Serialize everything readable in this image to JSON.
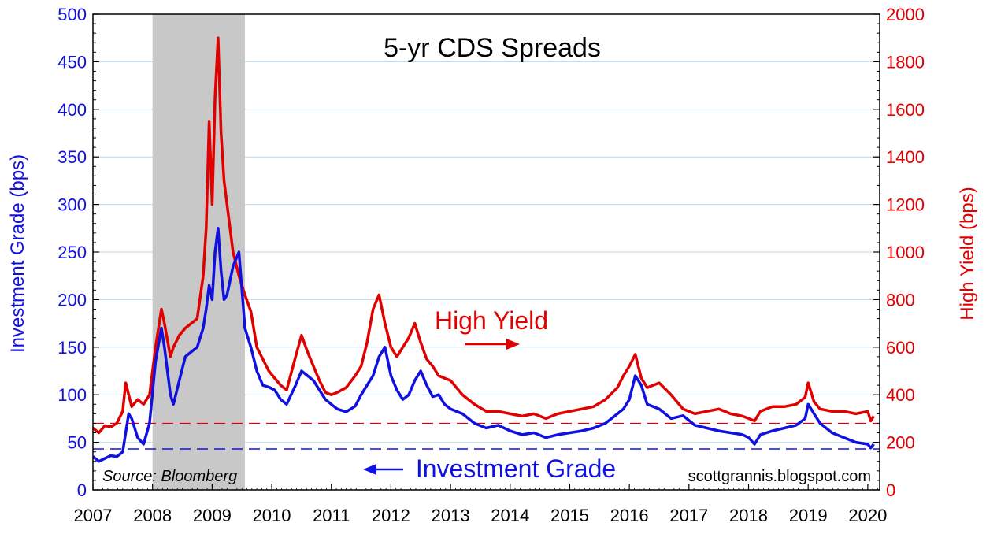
{
  "chart_data": {
    "type": "line",
    "title": "5-yr CDS Spreads",
    "source": "Source: Bloomberg",
    "watermark": "scottgrannis.blogspot.com",
    "ylabel_left": "Investment Grade (bps)",
    "ylabel_right": "High Yield (bps)",
    "ylim_left": [
      0,
      500
    ],
    "ylim_right": [
      0,
      2000
    ],
    "xlim": [
      2007,
      2020.2
    ],
    "yticks_left": [
      "0",
      "50",
      "100",
      "150",
      "200",
      "250",
      "300",
      "350",
      "400",
      "450",
      "500"
    ],
    "yticks_right": [
      "0",
      "200",
      "400",
      "600",
      "800",
      "1000",
      "1200",
      "1400",
      "1600",
      "1800",
      "2000"
    ],
    "xticks": [
      "2007",
      "2008",
      "2009",
      "2010",
      "2011",
      "2012",
      "2013",
      "2014",
      "2015",
      "2016",
      "2017",
      "2018",
      "2019",
      "2020"
    ],
    "grid": true,
    "shaded_region": [
      2008.0,
      2009.55
    ],
    "annotations": {
      "high_yield": "High Yield",
      "investment_grade": "Investment Grade"
    },
    "colors": {
      "investment_grade": "#1010e0",
      "high_yield": "#e00000",
      "shade": "#c8c8c8",
      "grid": "#b9d9ec"
    },
    "reference_lines": {
      "investment_grade": 43,
      "high_yield": 280
    },
    "series": [
      {
        "axis": "left",
        "color": "#1010e0",
        "x": [
          2007.0,
          2007.1,
          2007.2,
          2007.3,
          2007.4,
          2007.5,
          2007.55,
          2007.6,
          2007.65,
          2007.75,
          2007.85,
          2007.95,
          2008.05,
          2008.15,
          2008.2,
          2008.3,
          2008.35,
          2008.45,
          2008.55,
          2008.65,
          2008.75,
          2008.85,
          2008.9,
          2008.95,
          2009.0,
          2009.05,
          2009.1,
          2009.15,
          2009.2,
          2009.25,
          2009.35,
          2009.45,
          2009.55,
          2009.65,
          2009.75,
          2009.85,
          2009.95,
          2010.05,
          2010.15,
          2010.25,
          2010.4,
          2010.5,
          2010.6,
          2010.7,
          2010.8,
          2010.9,
          2011.0,
          2011.1,
          2011.25,
          2011.4,
          2011.5,
          2011.6,
          2011.7,
          2011.8,
          2011.9,
          2012.0,
          2012.1,
          2012.2,
          2012.3,
          2012.4,
          2012.5,
          2012.6,
          2012.7,
          2012.8,
          2012.9,
          2013.0,
          2013.2,
          2013.4,
          2013.6,
          2013.8,
          2014.0,
          2014.2,
          2014.4,
          2014.6,
          2014.8,
          2015.0,
          2015.2,
          2015.4,
          2015.6,
          2015.8,
          2015.9,
          2016.0,
          2016.1,
          2016.2,
          2016.3,
          2016.5,
          2016.7,
          2016.9,
          2017.1,
          2017.3,
          2017.5,
          2017.7,
          2017.9,
          2018.0,
          2018.1,
          2018.2,
          2018.4,
          2018.6,
          2018.8,
          2018.95,
          2019.0,
          2019.1,
          2019.2,
          2019.4,
          2019.6,
          2019.8,
          2020.0,
          2020.05,
          2020.1
        ],
        "values": [
          35,
          30,
          33,
          36,
          35,
          40,
          60,
          80,
          75,
          55,
          48,
          70,
          135,
          170,
          150,
          100,
          90,
          115,
          140,
          145,
          150,
          170,
          190,
          215,
          200,
          250,
          275,
          230,
          200,
          205,
          235,
          250,
          170,
          150,
          125,
          110,
          108,
          105,
          95,
          90,
          110,
          125,
          120,
          115,
          105,
          95,
          90,
          85,
          82,
          88,
          100,
          110,
          120,
          140,
          150,
          120,
          105,
          95,
          100,
          115,
          125,
          110,
          98,
          100,
          90,
          85,
          80,
          70,
          65,
          68,
          62,
          58,
          60,
          55,
          58,
          60,
          62,
          65,
          70,
          80,
          85,
          95,
          120,
          110,
          90,
          85,
          75,
          78,
          68,
          65,
          62,
          60,
          58,
          55,
          48,
          58,
          62,
          65,
          68,
          75,
          90,
          80,
          70,
          60,
          55,
          50,
          48,
          44,
          48
        ]
      },
      {
        "axis": "right",
        "color": "#e00000",
        "x": [
          2007.0,
          2007.1,
          2007.2,
          2007.3,
          2007.4,
          2007.5,
          2007.55,
          2007.6,
          2007.65,
          2007.75,
          2007.85,
          2007.95,
          2008.05,
          2008.15,
          2008.2,
          2008.3,
          2008.35,
          2008.45,
          2008.55,
          2008.65,
          2008.75,
          2008.85,
          2008.9,
          2008.95,
          2009.0,
          2009.05,
          2009.1,
          2009.15,
          2009.2,
          2009.25,
          2009.35,
          2009.45,
          2009.55,
          2009.65,
          2009.75,
          2009.85,
          2009.95,
          2010.05,
          2010.15,
          2010.25,
          2010.4,
          2010.5,
          2010.6,
          2010.7,
          2010.8,
          2010.9,
          2011.0,
          2011.1,
          2011.25,
          2011.4,
          2011.5,
          2011.6,
          2011.7,
          2011.8,
          2011.9,
          2012.0,
          2012.1,
          2012.2,
          2012.3,
          2012.4,
          2012.5,
          2012.6,
          2012.7,
          2012.8,
          2012.9,
          2013.0,
          2013.2,
          2013.4,
          2013.6,
          2013.8,
          2014.0,
          2014.2,
          2014.4,
          2014.6,
          2014.8,
          2015.0,
          2015.2,
          2015.4,
          2015.6,
          2015.8,
          2015.9,
          2016.0,
          2016.1,
          2016.2,
          2016.3,
          2016.5,
          2016.7,
          2016.9,
          2017.1,
          2017.3,
          2017.5,
          2017.7,
          2017.9,
          2018.0,
          2018.1,
          2018.2,
          2018.4,
          2018.6,
          2018.8,
          2018.95,
          2019.0,
          2019.1,
          2019.2,
          2019.4,
          2019.6,
          2019.8,
          2020.0,
          2020.05,
          2020.1
        ],
        "values": [
          260,
          240,
          270,
          265,
          280,
          330,
          450,
          400,
          350,
          380,
          360,
          400,
          600,
          760,
          700,
          560,
          600,
          650,
          680,
          700,
          720,
          900,
          1100,
          1550,
          1200,
          1650,
          1900,
          1500,
          1300,
          1200,
          1000,
          900,
          820,
          750,
          600,
          550,
          500,
          470,
          440,
          420,
          560,
          650,
          580,
          520,
          460,
          410,
          400,
          410,
          430,
          480,
          520,
          620,
          760,
          820,
          700,
          600,
          560,
          600,
          640,
          700,
          620,
          550,
          520,
          480,
          470,
          460,
          400,
          360,
          330,
          330,
          320,
          310,
          320,
          300,
          320,
          330,
          340,
          350,
          380,
          430,
          480,
          520,
          570,
          470,
          430,
          450,
          400,
          340,
          320,
          330,
          340,
          320,
          310,
          300,
          290,
          330,
          350,
          350,
          360,
          390,
          450,
          370,
          340,
          330,
          330,
          320,
          330,
          290,
          310
        ]
      }
    ]
  }
}
